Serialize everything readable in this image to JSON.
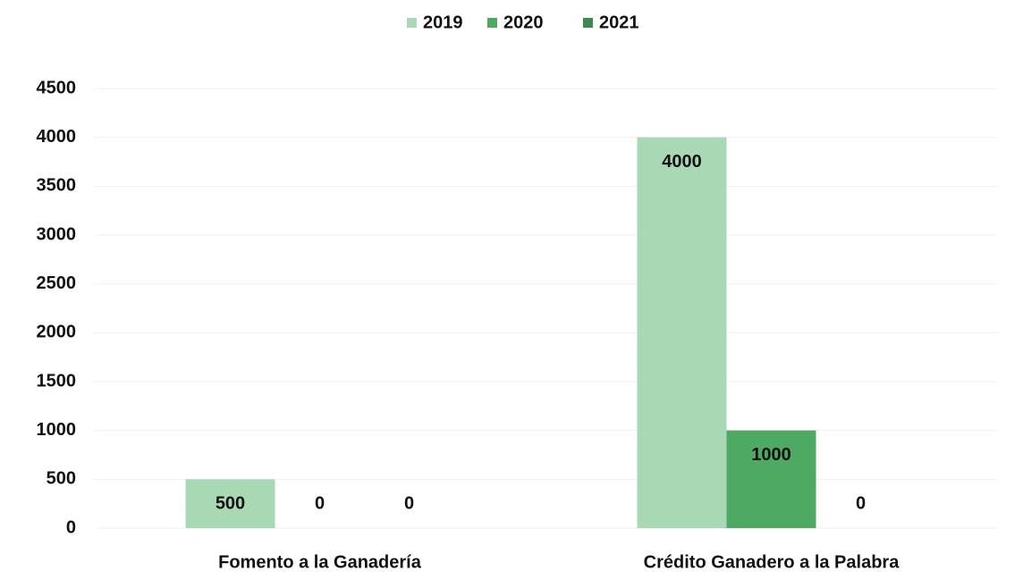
{
  "chart_data": {
    "type": "bar",
    "categories": [
      "Fomento a la Ganadería",
      "Crédito Ganadero a la Palabra"
    ],
    "series": [
      {
        "name": "2019",
        "color": "#a8d8b4",
        "values": [
          500,
          4000
        ]
      },
      {
        "name": "2020",
        "color": "#4eaa62",
        "values": [
          0,
          1000
        ]
      },
      {
        "name": "2021",
        "color": "#3d8a4f",
        "values": [
          0,
          0
        ]
      }
    ],
    "ylim": [
      0,
      4500
    ],
    "yticks": [
      0,
      500,
      1000,
      1500,
      2000,
      2500,
      3000,
      3500,
      4000,
      4500
    ],
    "grid": true,
    "legend": "top"
  }
}
